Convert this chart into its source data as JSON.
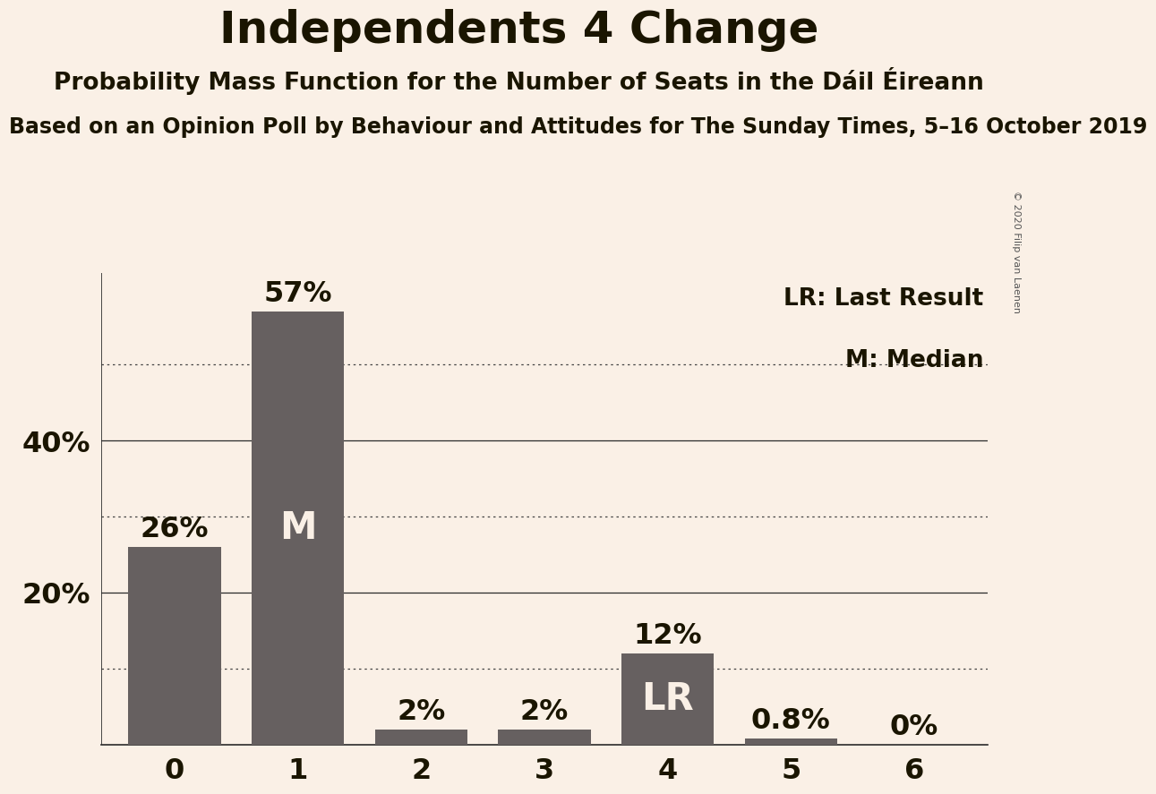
{
  "title": "Independents 4 Change",
  "subtitle": "Probability Mass Function for the Number of Seats in the Dáil Éireann",
  "sub_subtitle": "Based on an Opinion Poll by Behaviour and Attitudes for The Sunday Times, 5–16 October 2019",
  "copyright": "© 2020 Filip van Laenen",
  "categories": [
    0,
    1,
    2,
    3,
    4,
    5,
    6
  ],
  "values": [
    0.26,
    0.57,
    0.02,
    0.02,
    0.12,
    0.008,
    0.0
  ],
  "bar_labels": [
    "26%",
    "57%",
    "2%",
    "2%",
    "12%",
    "0.8%",
    "0%"
  ],
  "bar_inner_labels": [
    "",
    "M",
    "",
    "",
    "LR",
    "",
    ""
  ],
  "bar_color": "#666060",
  "background_color": "#FAF0E6",
  "title_color": "#1a1500",
  "solid_gridlines": [
    0.2,
    0.4
  ],
  "dotted_gridlines": [
    0.1,
    0.3,
    0.5
  ],
  "yticks": [
    0.0,
    0.2,
    0.4
  ],
  "ytick_labels": [
    "",
    "20%",
    "40%"
  ],
  "legend_text": [
    "LR: Last Result",
    "M: Median"
  ],
  "title_fontsize": 36,
  "subtitle_fontsize": 19,
  "sub_subtitle_fontsize": 17,
  "bar_label_fontsize": 23,
  "inner_label_fontsize": 30,
  "axis_label_fontsize": 23,
  "legend_fontsize": 19,
  "ylim": [
    0,
    0.62
  ]
}
